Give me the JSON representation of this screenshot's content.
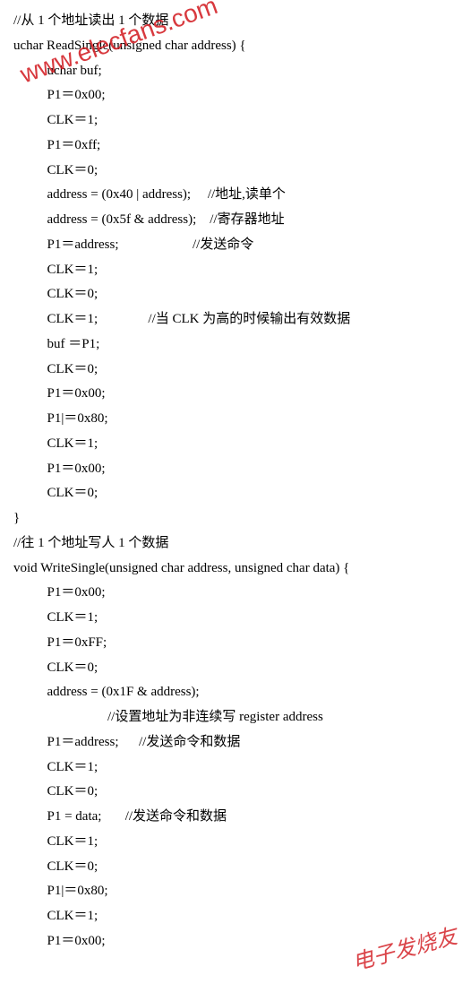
{
  "watermark1": "www.elecfans.com",
  "watermark2": "电子发烧友",
  "lines": [
    {
      "text": "//从 1 个地址读出 1 个数据",
      "indent": 0
    },
    {
      "text": "uchar ReadSingle(unsigned char address) {",
      "indent": 0
    },
    {
      "text": "uchar buf;",
      "indent": 1
    },
    {
      "text": "P1＝0x00;",
      "indent": 1
    },
    {
      "text": "CLK＝1;",
      "indent": 1
    },
    {
      "text": "P1＝0xff;",
      "indent": 1
    },
    {
      "text": "CLK＝0;",
      "indent": 1
    },
    {
      "text": "address = (0x40 | address);     //地址,读单个",
      "indent": 1
    },
    {
      "text": "address = (0x5f & address);    //寄存器地址",
      "indent": 1
    },
    {
      "text": "P1＝address;                      //发送命令",
      "indent": 1
    },
    {
      "text": "CLK＝1;",
      "indent": 1
    },
    {
      "text": "CLK＝0;",
      "indent": 1
    },
    {
      "text": "CLK＝1;               //当 CLK 为高的时候输出有效数据",
      "indent": 1
    },
    {
      "text": "buf ＝P1;",
      "indent": 1
    },
    {
      "text": "CLK＝0;",
      "indent": 1
    },
    {
      "text": "P1＝0x00;",
      "indent": 1
    },
    {
      "text": "P1|＝0x80;",
      "indent": 1
    },
    {
      "text": "CLK＝1;",
      "indent": 1
    },
    {
      "text": "P1＝0x00;",
      "indent": 1
    },
    {
      "text": "CLK＝0;",
      "indent": 1
    },
    {
      "text": "}",
      "indent": 0
    },
    {
      "text": "//往 1 个地址写人 1 个数据",
      "indent": 0
    },
    {
      "text": "void WriteSingle(unsigned char address, unsigned char data) {",
      "indent": 0
    },
    {
      "text": "P1＝0x00;",
      "indent": 1
    },
    {
      "text": "CLK＝1;",
      "indent": 1
    },
    {
      "text": "P1＝0xFF;",
      "indent": 1
    },
    {
      "text": "CLK＝0;",
      "indent": 1
    },
    {
      "text": "address = (0x1F & address);",
      "indent": 1
    },
    {
      "text": "                  //设置地址为非连续写 register address",
      "indent": 1
    },
    {
      "text": "P1＝address;      //发送命令和数据",
      "indent": 1
    },
    {
      "text": "CLK＝1;",
      "indent": 1
    },
    {
      "text": "CLK＝0;",
      "indent": 1
    },
    {
      "text": "P1 = data;       //发送命令和数据",
      "indent": 1
    },
    {
      "text": "CLK＝1;",
      "indent": 1
    },
    {
      "text": "CLK＝0;",
      "indent": 1
    },
    {
      "text": "P1|＝0x80;",
      "indent": 1
    },
    {
      "text": "CLK＝1;",
      "indent": 1
    },
    {
      "text": "P1＝0x00;",
      "indent": 1
    }
  ]
}
